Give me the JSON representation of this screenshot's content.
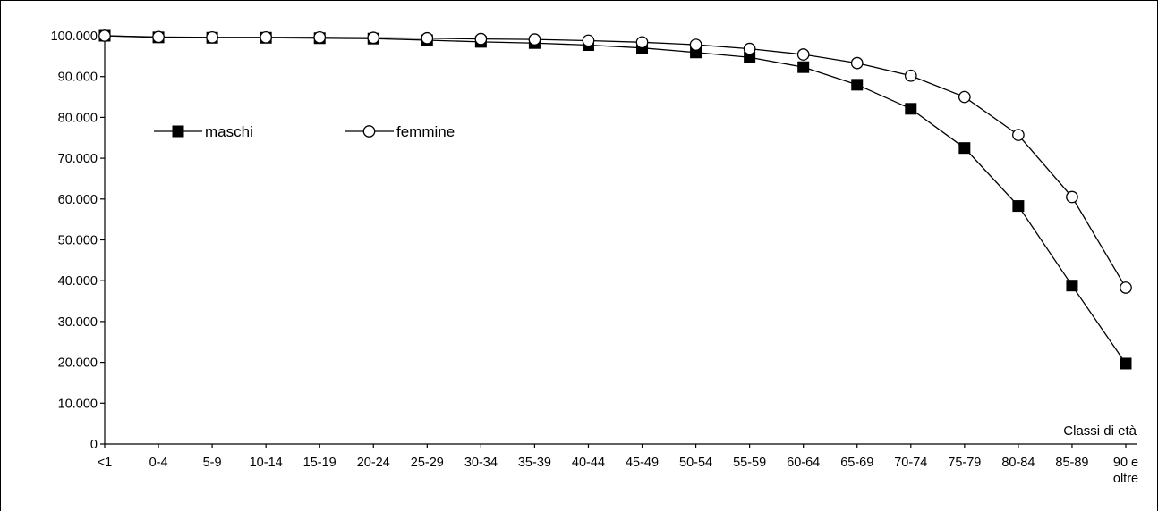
{
  "chart_data": {
    "type": "line",
    "xlabel": "Classi di età",
    "ylabel": "",
    "ylim": [
      0,
      100000
    ],
    "y_ticks": [
      0,
      10000,
      20000,
      30000,
      40000,
      50000,
      60000,
      70000,
      80000,
      90000,
      100000
    ],
    "y_tick_labels": [
      "0",
      "10.000",
      "20.000",
      "30.000",
      "40.000",
      "50.000",
      "60.000",
      "70.000",
      "80.000",
      "90.000",
      "100.000"
    ],
    "categories": [
      "<1",
      "0-4",
      "5-9",
      "10-14",
      "15-19",
      "20-24",
      "25-29",
      "30-34",
      "35-39",
      "40-44",
      "45-49",
      "50-54",
      "55-59",
      "60-64",
      "65-69",
      "70-74",
      "75-79",
      "80-84",
      "85-89",
      "90 e oltre"
    ],
    "grid": false,
    "legend_placement": "top-left",
    "series": [
      {
        "name": "maschi",
        "marker": "filled-square",
        "color": "#000000",
        "values": [
          100000,
          99600,
          99500,
          99500,
          99400,
          99300,
          98900,
          98500,
          98200,
          97700,
          97000,
          95900,
          94700,
          92300,
          88000,
          82100,
          72500,
          58300,
          38800,
          19700
        ]
      },
      {
        "name": "femmine",
        "marker": "open-circle",
        "color": "#000000",
        "values": [
          100000,
          99700,
          99600,
          99600,
          99600,
          99500,
          99400,
          99200,
          99100,
          98800,
          98400,
          97800,
          96800,
          95400,
          93300,
          90200,
          85000,
          75700,
          60500,
          38300
        ]
      }
    ]
  }
}
